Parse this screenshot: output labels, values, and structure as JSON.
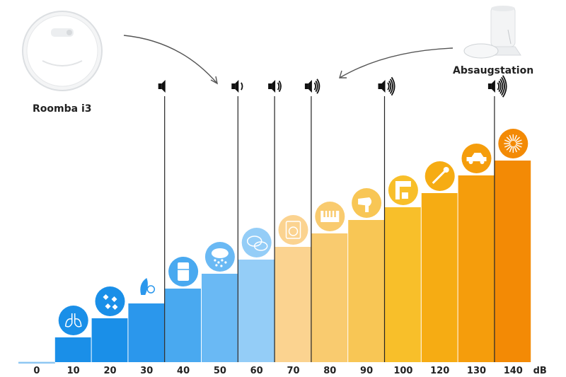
{
  "devices": {
    "robot_label": "Roomba i3",
    "station_label": "Absaugstation"
  },
  "chart_data": {
    "type": "bar",
    "unit_label": "dB",
    "categories": [
      "0",
      "10",
      "20",
      "30",
      "40",
      "50",
      "60",
      "70",
      "80",
      "90",
      "100",
      "120",
      "130",
      "140"
    ],
    "values": [
      0,
      10,
      20,
      30,
      40,
      50,
      60,
      70,
      80,
      90,
      100,
      120,
      130,
      140
    ],
    "bar_colors": [
      "#9fd0f4",
      "#1a8fe8",
      "#1a8fe8",
      "#2b97ec",
      "#49a9f0",
      "#6ab9f4",
      "#94cdf7",
      "#fbd390",
      "#f9cb6f",
      "#f8c655",
      "#f8bf2a",
      "#f6ac13",
      "#f59d0c",
      "#f38a05"
    ],
    "bar_heights": [
      0.5,
      35,
      62,
      83,
      104,
      125,
      145,
      163,
      182,
      201,
      219,
      239,
      264,
      285
    ],
    "icons": [
      {
        "bar": 1,
        "name": "lungs-icon",
        "color": "#1a8fe8"
      },
      {
        "bar": 2,
        "name": "leaves-icon",
        "color": "#1a8fe8"
      },
      {
        "bar": 3,
        "name": "whisper-icon",
        "color": "#2b97ec"
      },
      {
        "bar": 4,
        "name": "fridge-icon",
        "color": "#49a9f0"
      },
      {
        "bar": 5,
        "name": "rain-icon",
        "color": "#6ab9f4"
      },
      {
        "bar": 6,
        "name": "conversation-icon",
        "color": "#94cdf7"
      },
      {
        "bar": 7,
        "name": "washing-machine-icon",
        "color": "#fbd390"
      },
      {
        "bar": 8,
        "name": "piano-icon",
        "color": "#f9cb6f"
      },
      {
        "bar": 9,
        "name": "hairdryer-icon",
        "color": "#f8c655"
      },
      {
        "bar": 10,
        "name": "coffee-machine-icon",
        "color": "#f8bf2a"
      },
      {
        "bar": 11,
        "name": "trombone-icon",
        "color": "#f6ac13"
      },
      {
        "bar": 12,
        "name": "police-car-icon",
        "color": "#f59d0c"
      },
      {
        "bar": 13,
        "name": "fireworks-icon",
        "color": "#f38a05"
      }
    ],
    "markers": [
      {
        "after_bar": 3,
        "waves": 0
      },
      {
        "after_bar": 5,
        "waves": 1
      },
      {
        "after_bar": 6,
        "waves": 2
      },
      {
        "after_bar": 7,
        "waves": 3
      },
      {
        "after_bar": 9,
        "waves": 4
      },
      {
        "after_bar": 12,
        "waves": 5
      }
    ]
  }
}
